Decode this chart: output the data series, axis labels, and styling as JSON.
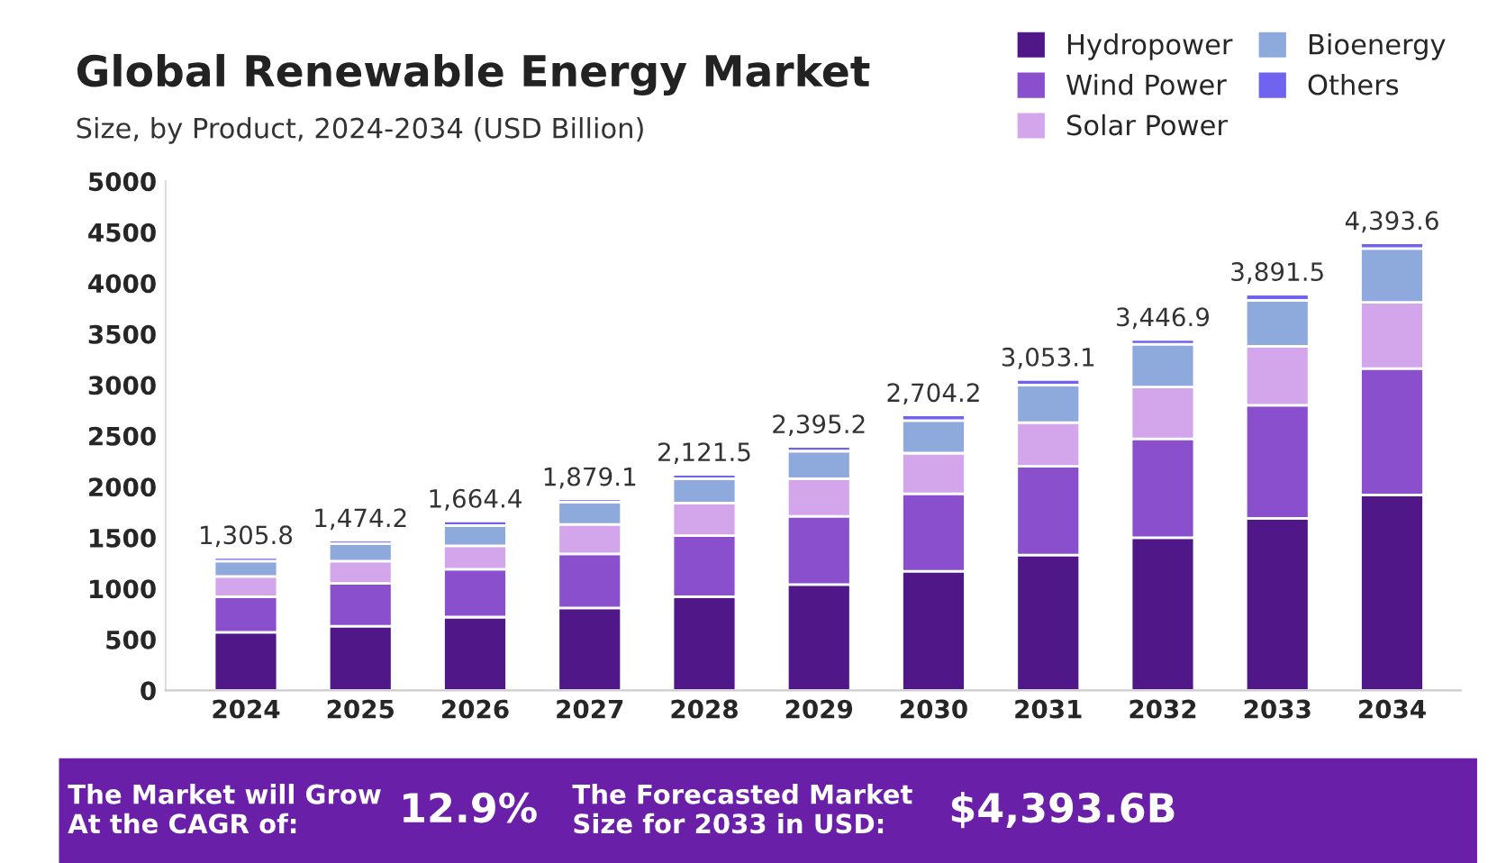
{
  "chart_data": {
    "type": "bar",
    "stacked": true,
    "title": "Global Renewable Energy Market",
    "subtitle": "Size, by Product, 2024-2034 (USD Billion)",
    "categories": [
      "2024",
      "2025",
      "2026",
      "2027",
      "2028",
      "2029",
      "2030",
      "2031",
      "2032",
      "2033",
      "2034"
    ],
    "series": [
      {
        "name": "Hydropower",
        "color": "#4f1787",
        "values": [
          570,
          630,
          720,
          810,
          920,
          1040,
          1170,
          1330,
          1500,
          1690,
          1920
        ]
      },
      {
        "name": "Wind Power",
        "color": "#8a4fcc",
        "values": [
          350,
          420,
          470,
          530,
          600,
          670,
          760,
          870,
          970,
          1110,
          1240
        ]
      },
      {
        "name": "Solar Power",
        "color": "#d3a6ec",
        "values": [
          200,
          220,
          230,
          290,
          320,
          370,
          400,
          430,
          510,
          580,
          650
        ]
      },
      {
        "name": "Bioenergy",
        "color": "#8ea9dc",
        "values": [
          150,
          170,
          200,
          220,
          240,
          270,
          320,
          370,
          420,
          450,
          530
        ]
      },
      {
        "name": "Others",
        "color": "#6f63f0",
        "values": [
          35.8,
          34.2,
          44.4,
          29.1,
          41.5,
          45.2,
          54.2,
          53.1,
          46.9,
          61.5,
          53.6
        ]
      }
    ],
    "totals": [
      "1,305.8",
      "1,474.2",
      "1,664.4",
      "1,879.1",
      "2,121.5",
      "2,395.2",
      "2,704.2",
      "3,053.1",
      "3,446.9",
      "3,891.5",
      "4,393.6"
    ],
    "ylim": [
      0,
      5000
    ],
    "yticks": [
      0,
      500,
      1000,
      1500,
      2000,
      2500,
      3000,
      3500,
      4000,
      4500,
      5000
    ],
    "legend": "top right",
    "grid": false,
    "annotations": [
      "The Market will Grow\nAt the CAGR of:",
      "12.9%",
      "The Forecasted Market\nSize for 2033 in USD:",
      "$4,393.6B"
    ]
  }
}
